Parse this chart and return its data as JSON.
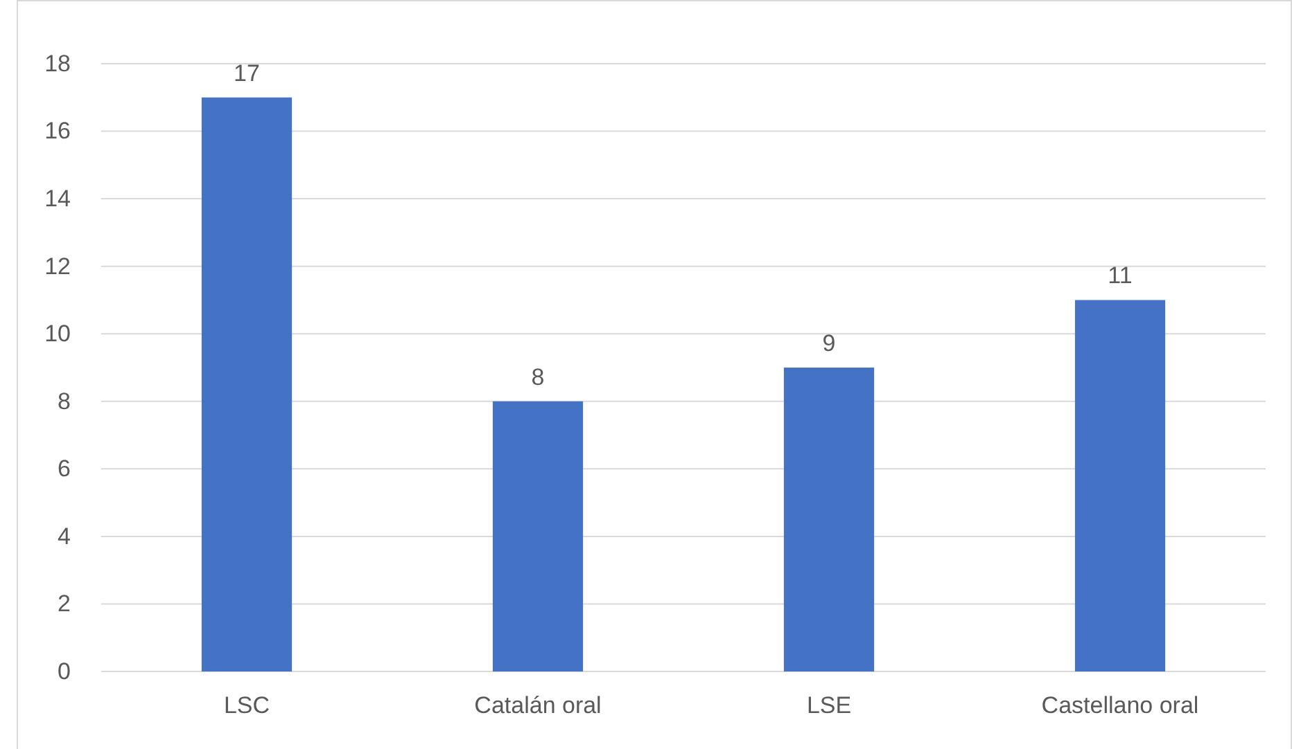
{
  "chart_data": {
    "type": "bar",
    "categories": [
      "LSC",
      "Catalán oral",
      "LSE",
      "Castellano oral"
    ],
    "values": [
      17,
      8,
      9,
      11
    ],
    "color": "#4472c4",
    "ylim": [
      0,
      18
    ],
    "yticks": [
      0,
      2,
      4,
      6,
      8,
      10,
      12,
      14,
      16,
      18
    ],
    "grid": "y",
    "data_labels": true
  }
}
